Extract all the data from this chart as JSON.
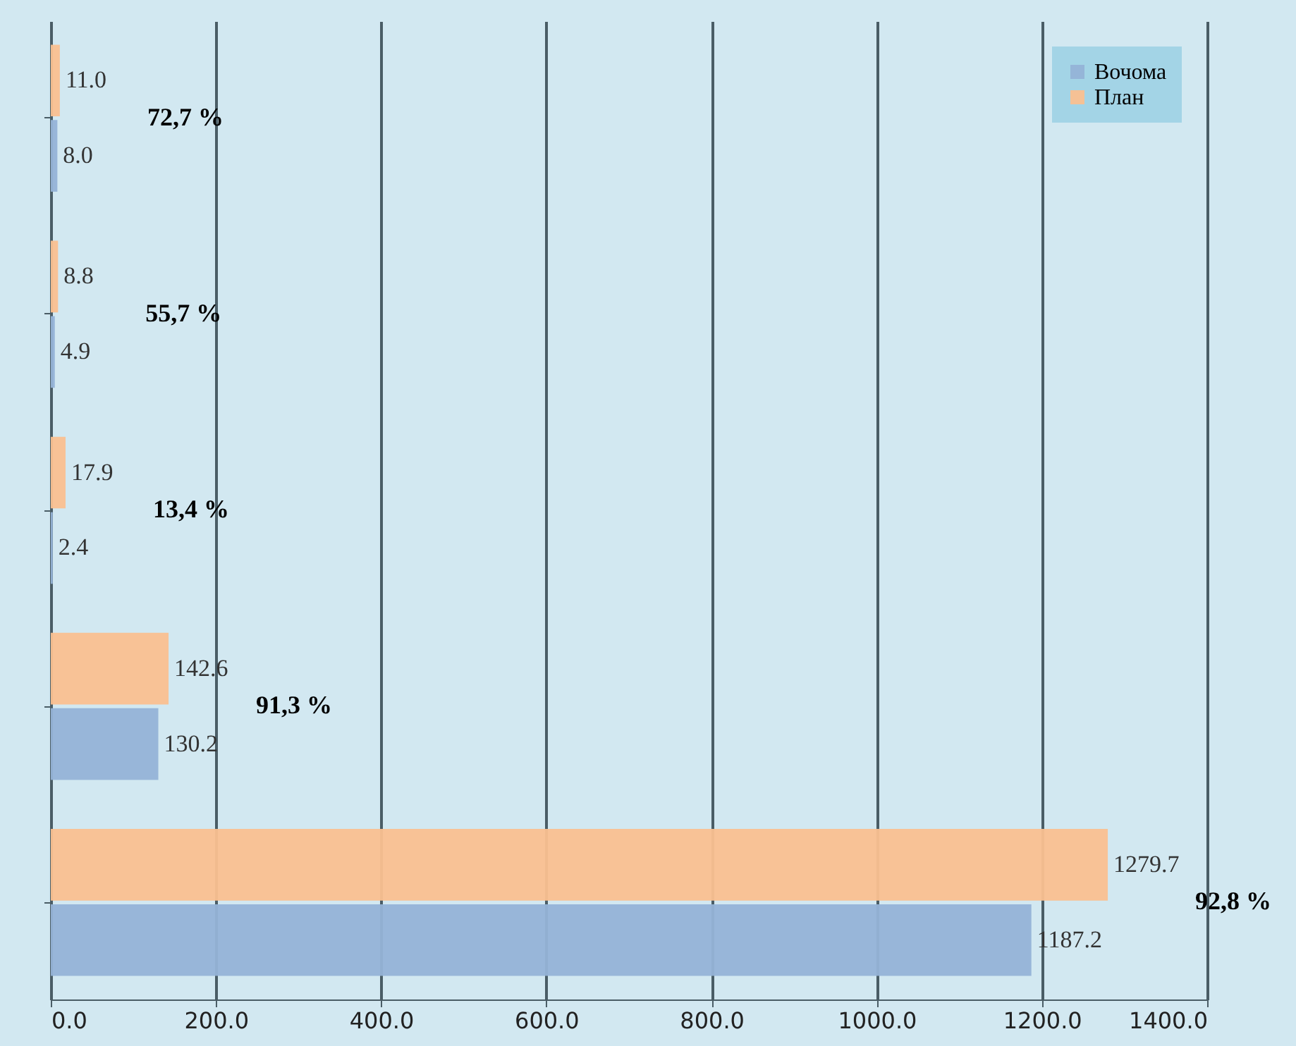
{
  "chart_data": {
    "type": "bar",
    "orientation": "horizontal",
    "categories": [
      null,
      null,
      null,
      null,
      null
    ],
    "series": [
      {
        "name": "Вочома",
        "color": "#95b3d7",
        "values": [
          8.0,
          4.9,
          2.4,
          130.2,
          1187.2
        ],
        "value_labels": [
          "8.0",
          "4.9",
          "2.4",
          "130.2",
          "1187.2"
        ]
      },
      {
        "name": "План",
        "color": "#fac090",
        "values": [
          11.0,
          8.8,
          17.9,
          142.6,
          1279.7
        ],
        "value_labels": [
          "11.0",
          "8.8",
          "17.9",
          "142.6",
          "1279.7"
        ]
      }
    ],
    "xlim": [
      0,
      1400
    ],
    "xticks": [
      {
        "value": 0,
        "label": "0.0"
      },
      {
        "value": 200,
        "label": "200.0"
      },
      {
        "value": 400,
        "label": "400.0"
      },
      {
        "value": 600,
        "label": "600.0"
      },
      {
        "value": 800,
        "label": "800.0"
      },
      {
        "value": 1000,
        "label": "1000.0"
      },
      {
        "value": 1200,
        "label": "1200.0"
      },
      {
        "value": 1400,
        "label": "1400.0"
      }
    ],
    "annotations": [
      "72,7 %",
      "55,7 %",
      "13,4 %",
      "91,3 %",
      "92,8 %"
    ],
    "grid": "x",
    "legend": "top right",
    "tick_labels": "x"
  }
}
